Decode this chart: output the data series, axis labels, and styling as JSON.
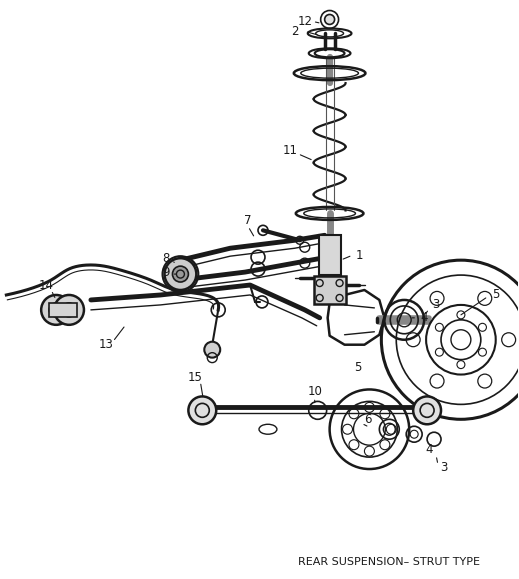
{
  "title": "REAR SUSPENSION– STRUT TYPE",
  "title_fontsize": 8,
  "background_color": "#ffffff",
  "line_color": "#1a1a1a",
  "fig_width": 5.19,
  "fig_height": 5.79,
  "dpi": 100
}
